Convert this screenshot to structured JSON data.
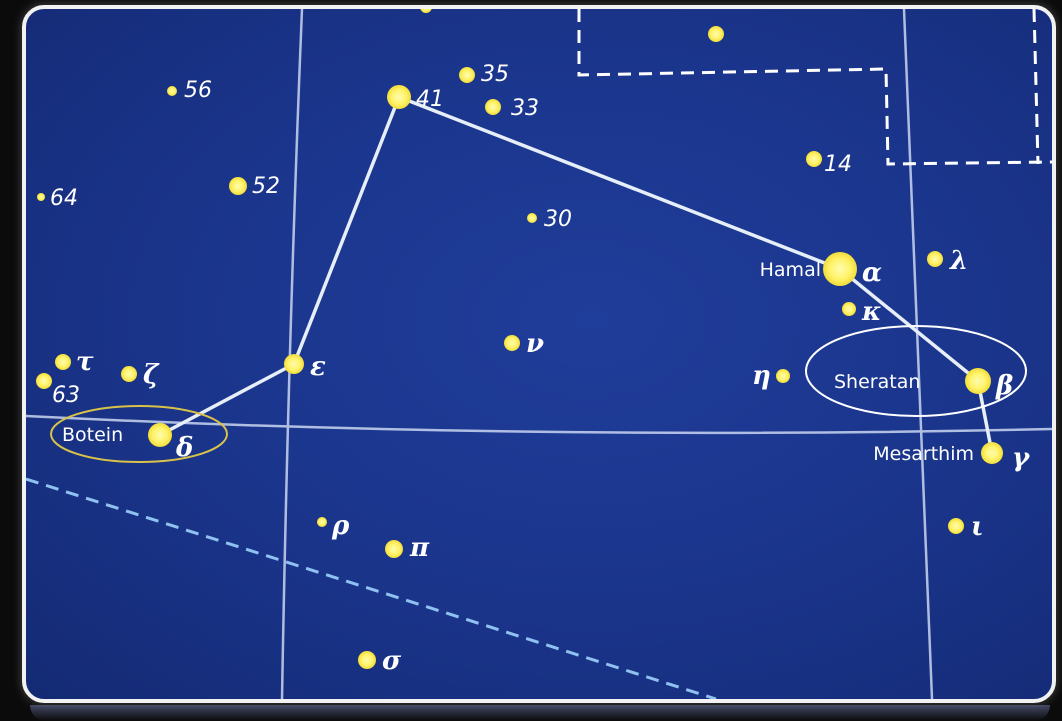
{
  "star_chart": {
    "names": {
      "alpha": "Hamal",
      "beta": "Sheratan",
      "gamma": "Mesarthim",
      "delta": "Botein"
    },
    "greek": {
      "alpha": "α",
      "beta": "β",
      "gamma": "γ",
      "delta": "δ",
      "epsilon": "ε",
      "zeta": "ζ",
      "eta": "η",
      "iota": "ι",
      "kappa": "κ",
      "lambda": "λ",
      "nu": "ν",
      "pi": "π",
      "rho": "ρ",
      "sigma": "σ",
      "tau": "τ"
    },
    "numbers": {
      "n14": "14",
      "n30": "30",
      "n33": "33",
      "n35": "35",
      "n41": "41",
      "n52": "52",
      "n56": "56",
      "n63": "63",
      "n64": "64"
    },
    "colors": {
      "background": "#1a348a",
      "star": "#fff36a",
      "lines": "#e6eef8",
      "highlight_ellipse_yellow": "#d8c24a",
      "highlight_ellipse_white": "#ffffff"
    },
    "stick_figure": [
      "41",
      "alpha",
      "beta",
      "gamma"
    ],
    "stick_figure_2": [
      "41",
      "epsilon",
      "delta"
    ],
    "highlighted_stars": [
      "delta",
      "beta"
    ]
  }
}
